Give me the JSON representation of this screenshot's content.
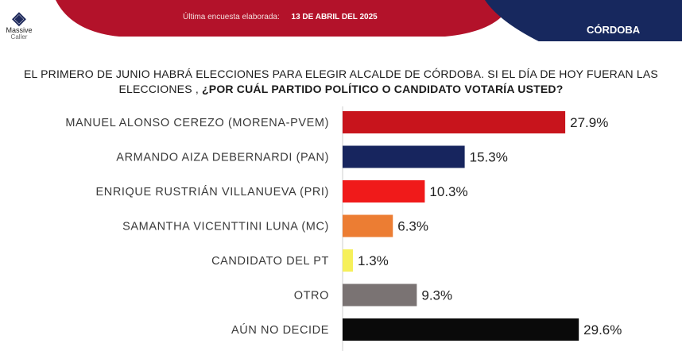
{
  "header": {
    "brand_name": "Massive",
    "brand_sub": "Caller",
    "survey_label": "Última encuesta elaborada:",
    "survey_date": "13 DE ABRIL DEL 2025",
    "region": "CÓRDOBA",
    "colors": {
      "red": "#b3122a",
      "navy": "#17285e"
    }
  },
  "question": {
    "line1": "EL PRIMERO DE JUNIO HABRÁ ELECCIONES PARA ELEGIR ALCALDE DE CÓRDOBA.  SI EL DÍA DE HOY FUERAN LAS ELECCIONES ,",
    "line2": "¿POR CUÁL PARTIDO POLÍTICO O CANDIDATO VOTARÍA USTED?"
  },
  "chart_data": {
    "type": "bar",
    "orientation": "horizontal",
    "categories": [
      "MANUEL ALONSO CEREZO (MORENA-PVEM)",
      "ARMANDO AIZA DEBERNARDI (PAN)",
      "ENRIQUE RUSTRIÁN VILLANUEVA (PRI)",
      "SAMANTHA VICENTTINI LUNA (MC)",
      "CANDIDATO DEL PT",
      "OTRO",
      "AÚN NO DECIDE"
    ],
    "values": [
      27.9,
      15.3,
      10.3,
      6.3,
      1.3,
      9.3,
      29.6
    ],
    "value_labels": [
      "27.9%",
      "15.3%",
      "10.3%",
      "6.3%",
      "1.3%",
      "9.3%",
      "29.6%"
    ],
    "colors": [
      "#c8141c",
      "#17255e",
      "#f01a1a",
      "#ec7d33",
      "#f6f05a",
      "#7a7373",
      "#0a0a0a"
    ],
    "xlim": [
      0,
      30
    ]
  }
}
